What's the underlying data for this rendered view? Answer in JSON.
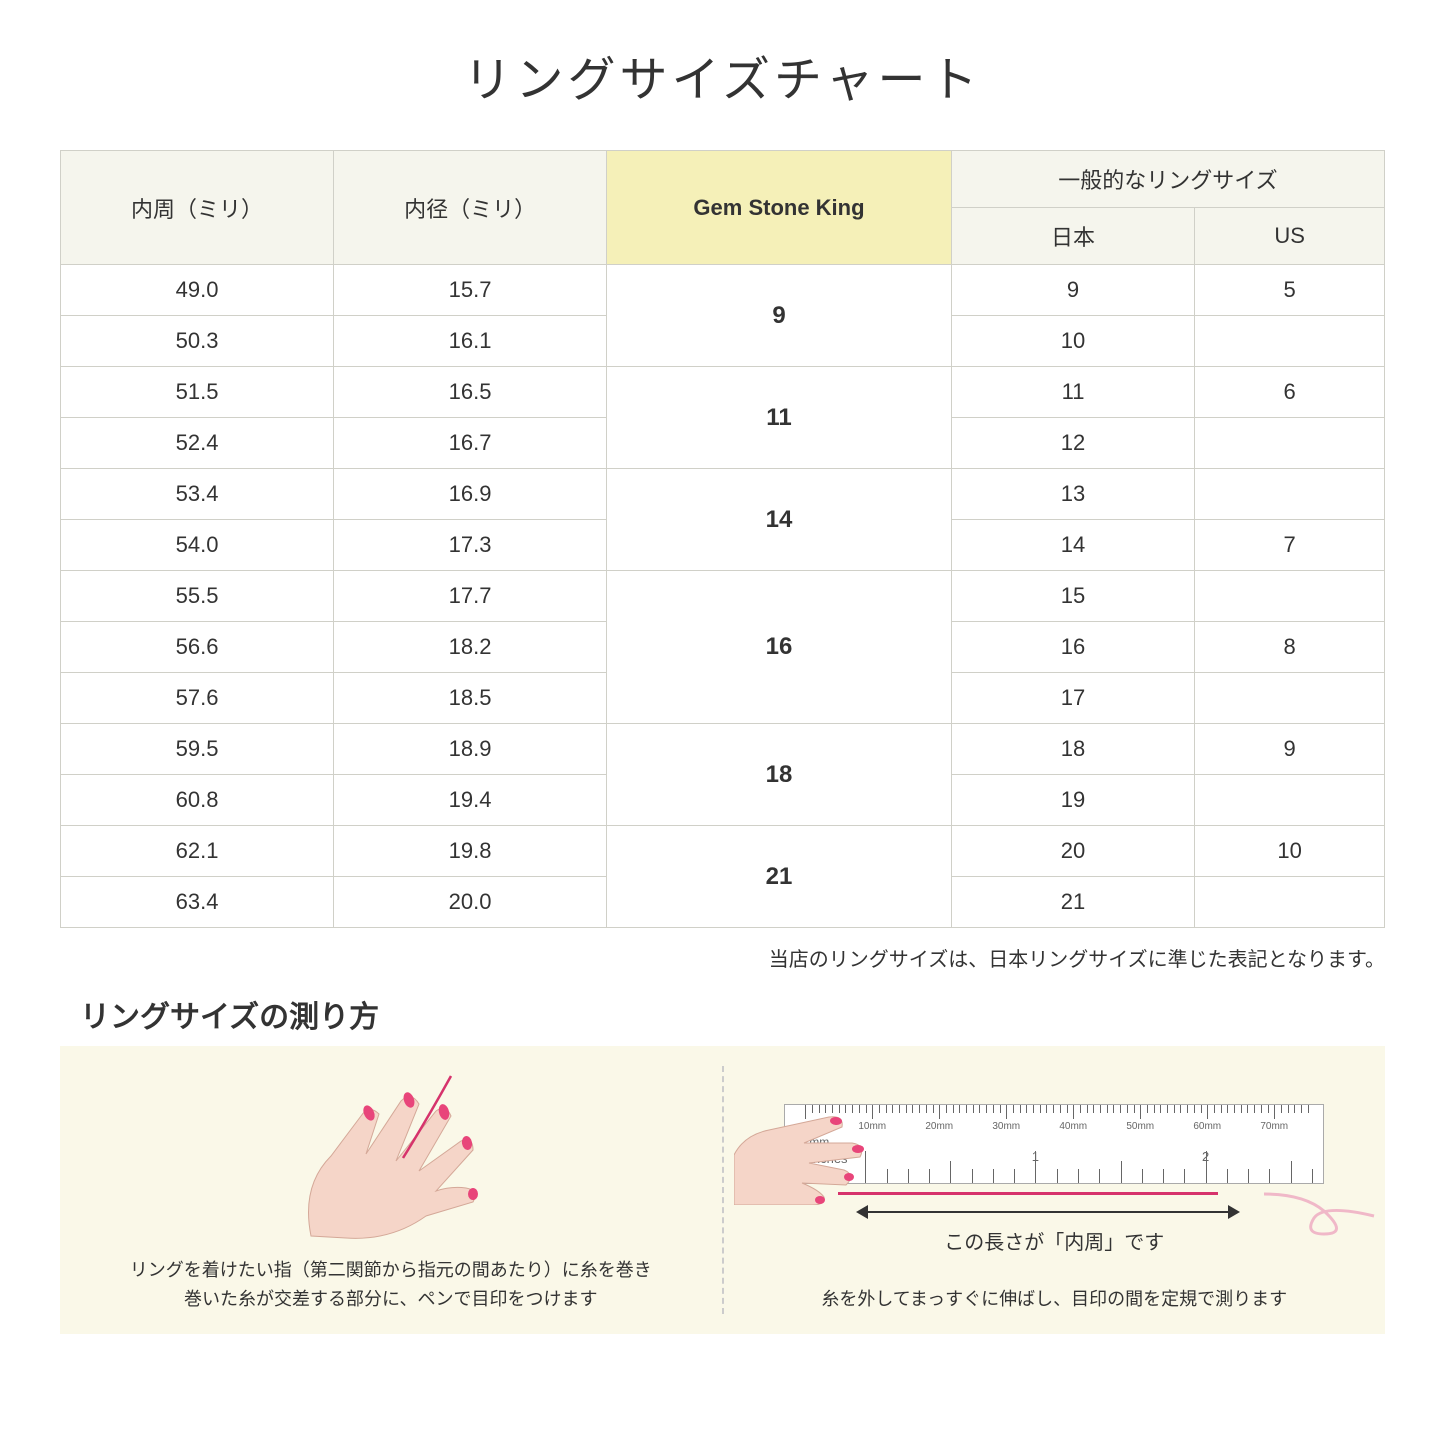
{
  "title": "リングサイズチャート",
  "table": {
    "headers": {
      "col1": "内周（ミリ）",
      "col2": "内径（ミリ）",
      "col3": "Gem Stone King",
      "col4_group": "一般的なリングサイズ",
      "col4a": "日本",
      "col4b": "US"
    },
    "groups": [
      {
        "gsk": "9",
        "rows": [
          {
            "c": "49.0",
            "d": "15.7",
            "jp": "9",
            "us": "5"
          },
          {
            "c": "50.3",
            "d": "16.1",
            "jp": "10",
            "us": ""
          }
        ]
      },
      {
        "gsk": "11",
        "rows": [
          {
            "c": "51.5",
            "d": "16.5",
            "jp": "11",
            "us": "6"
          },
          {
            "c": "52.4",
            "d": "16.7",
            "jp": "12",
            "us": ""
          }
        ]
      },
      {
        "gsk": "14",
        "rows": [
          {
            "c": "53.4",
            "d": "16.9",
            "jp": "13",
            "us": ""
          },
          {
            "c": "54.0",
            "d": "17.3",
            "jp": "14",
            "us": "7"
          }
        ]
      },
      {
        "gsk": "16",
        "rows": [
          {
            "c": "55.5",
            "d": "17.7",
            "jp": "15",
            "us": ""
          },
          {
            "c": "56.6",
            "d": "18.2",
            "jp": "16",
            "us": "8"
          },
          {
            "c": "57.6",
            "d": "18.5",
            "jp": "17",
            "us": ""
          }
        ]
      },
      {
        "gsk": "18",
        "rows": [
          {
            "c": "59.5",
            "d": "18.9",
            "jp": "18",
            "us": "9"
          },
          {
            "c": "60.8",
            "d": "19.4",
            "jp": "19",
            "us": ""
          }
        ]
      },
      {
        "gsk": "21",
        "rows": [
          {
            "c": "62.1",
            "d": "19.8",
            "jp": "20",
            "us": "10"
          },
          {
            "c": "63.4",
            "d": "20.0",
            "jp": "21",
            "us": ""
          }
        ]
      }
    ]
  },
  "note": "当店のリングサイズは、日本リングサイズに準じた表記となります。",
  "measure_title": "リングサイズの測り方",
  "panel1_text": "リングを着けたい指（第二関節から指元の間あたり）に糸を巻き\n巻いた糸が交差する部分に、ペンで目印をつけます",
  "panel2_arrow_label": "この長さが「内周」です",
  "panel2_text": "糸を外してまっすぐに伸ばし、目印の間を定規で測ります",
  "ruler": {
    "mm_label": "mm",
    "inches_label": "Inches",
    "mm_marks": [
      "10mm",
      "20mm",
      "30mm",
      "40mm",
      "50mm",
      "60mm",
      "70mm"
    ],
    "inch_marks": [
      "1",
      "2"
    ]
  },
  "colors": {
    "header_bg": "#f5f5ed",
    "highlight_bg": "#f5f0b8",
    "panel_bg": "#faf8e8",
    "border": "#d0d0c8",
    "thread": "#d6336c",
    "skin": "#f5d5c8",
    "nail": "#e8457a"
  }
}
